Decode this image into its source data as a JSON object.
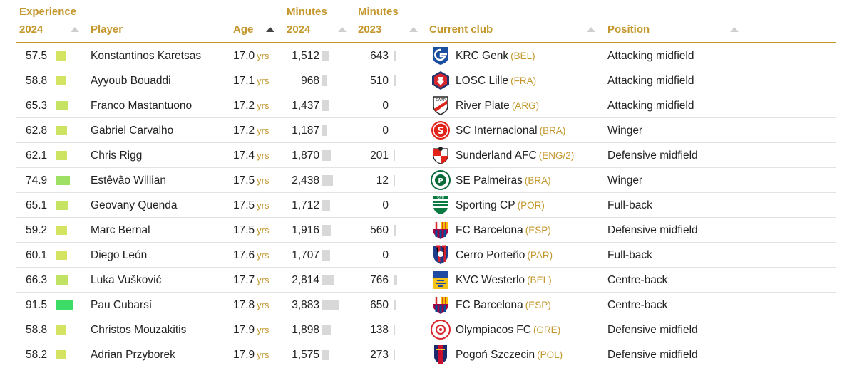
{
  "header": {
    "experience": [
      "Experience",
      "2024"
    ],
    "player": "Player",
    "age": "Age",
    "minutes2024": [
      "Minutes",
      "2024"
    ],
    "minutes2023": [
      "Minutes",
      "2023"
    ],
    "club": "Current club",
    "position": "Position"
  },
  "unit_years": "yrs",
  "rows": [
    {
      "exp": "57.5",
      "exp_value": 57.5,
      "exp_color": "#d4e462",
      "player": "Konstantinos Karetsas",
      "age": "17.0",
      "m24": "1,512",
      "m24_value": 1512,
      "m23": "643",
      "m23_value": 643,
      "club": "KRC Genk",
      "country": "(BEL)",
      "logo": "genk-logo"
    },
    {
      "exp": "58.8",
      "exp_value": 58.8,
      "exp_color": "#d4e462",
      "player": "Ayyoub Bouaddi",
      "age": "17.1",
      "m24": "968",
      "m24_value": 968,
      "m23": "510",
      "m23_value": 510,
      "club": "LOSC Lille",
      "country": "(FRA)",
      "logo": "lille-logo"
    },
    {
      "exp": "65.3",
      "exp_value": 65.3,
      "exp_color": "#c6e364",
      "player": "Franco Mastantuono",
      "age": "17.2",
      "m24": "1,437",
      "m24_value": 1437,
      "m23": "0",
      "m23_value": 0,
      "club": "River Plate",
      "country": "(ARG)",
      "logo": "river-plate-logo"
    },
    {
      "exp": "62.8",
      "exp_value": 62.8,
      "exp_color": "#cde463",
      "player": "Gabriel Carvalho",
      "age": "17.2",
      "m24": "1,187",
      "m24_value": 1187,
      "m23": "0",
      "m23_value": 0,
      "club": "SC Internacional",
      "country": "(BRA)",
      "logo": "internacional-logo"
    },
    {
      "exp": "62.1",
      "exp_value": 62.1,
      "exp_color": "#cde463",
      "player": "Chris Rigg",
      "age": "17.4",
      "m24": "1,870",
      "m24_value": 1870,
      "m23": "201",
      "m23_value": 201,
      "club": "Sunderland AFC",
      "country": "(ENG/2)",
      "logo": "sunderland-logo"
    },
    {
      "exp": "74.9",
      "exp_value": 74.9,
      "exp_color": "#9ee063",
      "player": "Estêvão Willian",
      "age": "17.5",
      "m24": "2,438",
      "m24_value": 2438,
      "m23": "12",
      "m23_value": 12,
      "club": "SE Palmeiras",
      "country": "(BRA)",
      "logo": "palmeiras-logo"
    },
    {
      "exp": "65.1",
      "exp_value": 65.1,
      "exp_color": "#c6e364",
      "player": "Geovany Quenda",
      "age": "17.5",
      "m24": "1,712",
      "m24_value": 1712,
      "m23": "0",
      "m23_value": 0,
      "club": "Sporting CP",
      "country": "(POR)",
      "logo": "sporting-logo"
    },
    {
      "exp": "59.2",
      "exp_value": 59.2,
      "exp_color": "#d4e462",
      "player": "Marc Bernal",
      "age": "17.5",
      "m24": "1,916",
      "m24_value": 1916,
      "m23": "560",
      "m23_value": 560,
      "club": "FC Barcelona",
      "country": "(ESP)",
      "logo": "barcelona-logo"
    },
    {
      "exp": "60.1",
      "exp_value": 60.1,
      "exp_color": "#d4e462",
      "player": "Diego León",
      "age": "17.6",
      "m24": "1,707",
      "m24_value": 1707,
      "m23": "0",
      "m23_value": 0,
      "club": "Cerro Porteño",
      "country": "(PAR)",
      "logo": "cerro-porteno-logo"
    },
    {
      "exp": "66.3",
      "exp_value": 66.3,
      "exp_color": "#c0e264",
      "player": "Luka Vušković",
      "age": "17.7",
      "m24": "2,814",
      "m24_value": 2814,
      "m23": "766",
      "m23_value": 766,
      "club": "KVC Westerlo",
      "country": "(BEL)",
      "logo": "westerlo-logo"
    },
    {
      "exp": "91.5",
      "exp_value": 91.5,
      "exp_color": "#3ddc66",
      "player": "Pau Cubarsí",
      "age": "17.8",
      "m24": "3,883",
      "m24_value": 3883,
      "m23": "650",
      "m23_value": 650,
      "club": "FC Barcelona",
      "country": "(ESP)",
      "logo": "barcelona-logo"
    },
    {
      "exp": "58.8",
      "exp_value": 58.8,
      "exp_color": "#d4e462",
      "player": "Christos Mouzakitis",
      "age": "17.9",
      "m24": "1,898",
      "m24_value": 1898,
      "m23": "138",
      "m23_value": 138,
      "club": "Olympiacos FC",
      "country": "(GRE)",
      "logo": "olympiacos-logo"
    },
    {
      "exp": "58.2",
      "exp_value": 58.2,
      "exp_color": "#d4e462",
      "player": "Adrian Przyborek",
      "age": "17.9",
      "m24": "1,575",
      "m24_value": 1575,
      "m23": "273",
      "m23_value": 273,
      "club": "Pogoń Szczecin",
      "country": "(POL)",
      "logo": "pogon-logo"
    }
  ],
  "positions": [
    "Attacking midfield",
    "Attacking midfield",
    "Attacking midfield",
    "Winger",
    "Defensive midfield",
    "Winger",
    "Full-back",
    "Defensive midfield",
    "Full-back",
    "Centre-back",
    "Centre-back",
    "Defensive midfield",
    "Defensive midfield"
  ]
}
